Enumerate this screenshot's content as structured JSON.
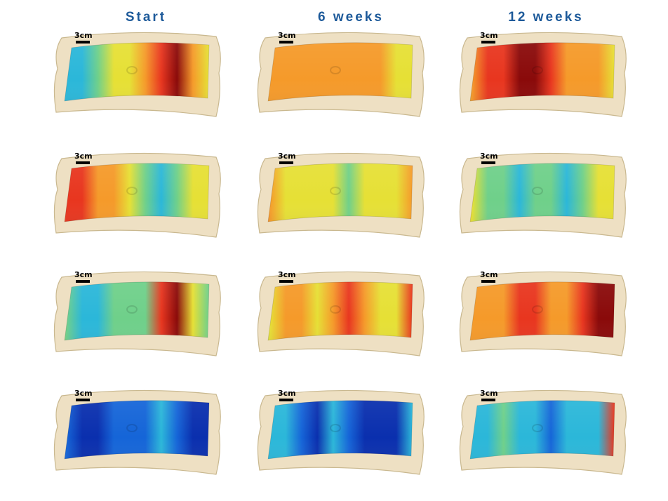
{
  "columns": [
    "Start",
    "6 weeks",
    "12 weeks"
  ],
  "scale_label": "3cm",
  "palette": {
    "skin": "#eee0c3",
    "skin_edge": "#c9b88f",
    "deep_blue": "#0a2fae",
    "blue": "#1565d8",
    "cyan": "#2bb7d9",
    "green": "#6fd08a",
    "yellow": "#e6e035",
    "orange": "#f59a2a",
    "red": "#e8361f",
    "dark_red": "#8a0a0a"
  },
  "maps": [
    [
      [
        "cyan",
        "cyan",
        "cyan",
        "green",
        "yellow",
        "yellow",
        "orange",
        "red",
        "dark_red",
        "orange",
        "yellow",
        "yellow"
      ],
      [
        "orange",
        "red",
        "red",
        "orange",
        "orange",
        "yellow",
        "green",
        "cyan",
        "green",
        "yellow",
        "yellow",
        "yellow"
      ],
      [
        "orange",
        "green",
        "cyan",
        "cyan",
        "green",
        "green",
        "green",
        "red",
        "dark_red",
        "yellow",
        "green",
        "green"
      ],
      [
        "blue",
        "blue",
        "deep_blue",
        "deep_blue",
        "blue",
        "blue",
        "blue",
        "cyan",
        "blue",
        "deep_blue",
        "deep_blue",
        "deep_blue"
      ]
    ],
    [
      [
        "green",
        "orange",
        "orange",
        "orange",
        "orange",
        "orange",
        "orange",
        "orange",
        "orange",
        "yellow",
        "yellow",
        "cyan"
      ],
      [
        "red",
        "orange",
        "yellow",
        "yellow",
        "yellow",
        "yellow",
        "green",
        "yellow",
        "yellow",
        "yellow",
        "orange",
        "red"
      ],
      [
        "green",
        "yellow",
        "orange",
        "orange",
        "yellow",
        "orange",
        "red",
        "orange",
        "yellow",
        "yellow",
        "red",
        "dark_red"
      ],
      [
        "cyan",
        "cyan",
        "cyan",
        "blue",
        "deep_blue",
        "cyan",
        "blue",
        "deep_blue",
        "deep_blue",
        "deep_blue",
        "cyan",
        "cyan"
      ]
    ],
    [
      [
        "green",
        "orange",
        "red",
        "red",
        "dark_red",
        "dark_red",
        "red",
        "orange",
        "orange",
        "orange",
        "yellow",
        "green"
      ],
      [
        "orange",
        "yellow",
        "green",
        "green",
        "cyan",
        "green",
        "green",
        "cyan",
        "green",
        "yellow",
        "yellow",
        "orange"
      ],
      [
        "orange",
        "orange",
        "orange",
        "orange",
        "red",
        "red",
        "orange",
        "orange",
        "red",
        "dark_red",
        "dark_red",
        "dark_red"
      ],
      [
        "green",
        "cyan",
        "cyan",
        "green",
        "cyan",
        "cyan",
        "blue",
        "cyan",
        "cyan",
        "cyan",
        "red",
        "dark_red"
      ]
    ]
  ]
}
